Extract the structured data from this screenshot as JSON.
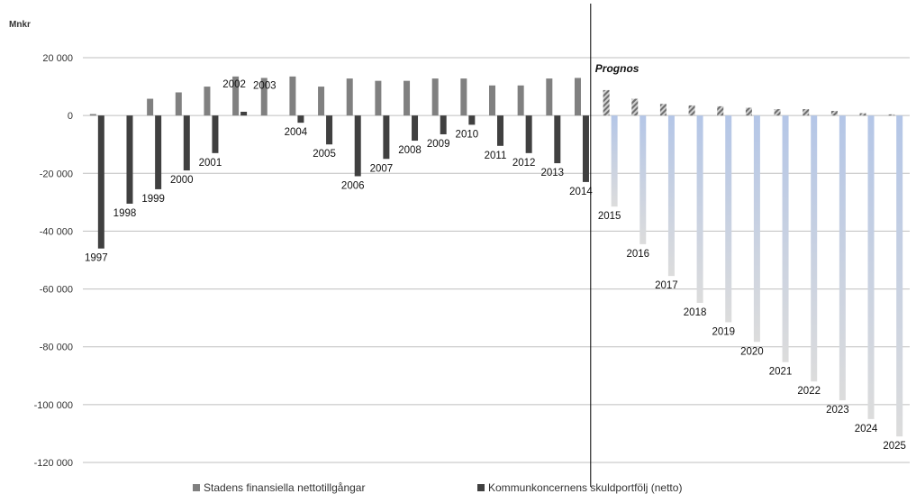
{
  "chart_data": {
    "type": "bar",
    "title": "",
    "unit_label": "Mnkr",
    "forecast_label": "Prognos",
    "ylim": [
      -120000,
      20000
    ],
    "yticks": [
      20000,
      0,
      -20000,
      -40000,
      -60000,
      -80000,
      -100000,
      -120000
    ],
    "ytick_labels": [
      "20 000",
      "0",
      "-20 000",
      "-40 000",
      "-60 000",
      "-80 000",
      "-100 000",
      "-120 000"
    ],
    "grid": true,
    "legend_position": "bottom",
    "colors": {
      "assets": "#808080",
      "debt": "#404040",
      "assets_forecast": "#8c8c8c",
      "debt_forecast_top": "#b4c6e7",
      "debt_forecast_bottom": "#d9d9d9"
    },
    "categories": [
      "1997",
      "1998",
      "1999",
      "2000",
      "2001",
      "2002",
      "2003",
      "2004",
      "2005",
      "2006",
      "2007",
      "2008",
      "2009",
      "2010",
      "2011",
      "2012",
      "2013",
      "2014",
      "2015",
      "2016",
      "2017",
      "2018",
      "2019",
      "2020",
      "2021",
      "2022",
      "2023",
      "2024",
      "2025"
    ],
    "forecast_start": "2015",
    "series": [
      {
        "name": "Stadens finansiella nettotillgångar",
        "values": [
          500,
          0,
          5800,
          8000,
          10000,
          13500,
          13000,
          13500,
          10000,
          12800,
          12000,
          12000,
          12800,
          12800,
          10400,
          10400,
          12800,
          13000,
          8800,
          5800,
          4000,
          3500,
          3200,
          2700,
          2200,
          2200,
          1600,
          800,
          400
        ]
      },
      {
        "name": "Kommunkoncernens skuldportfölj (netto)",
        "values": [
          -46000,
          -30500,
          -25500,
          -19000,
          -13000,
          1300,
          0,
          -2500,
          -10000,
          -21000,
          -15000,
          -8700,
          -6500,
          -3200,
          -10500,
          -13000,
          -16500,
          -23000,
          -31500,
          -44500,
          -55500,
          -64800,
          -71500,
          -78300,
          -85300,
          -92000,
          -98500,
          -105000,
          -111000
        ]
      }
    ]
  }
}
